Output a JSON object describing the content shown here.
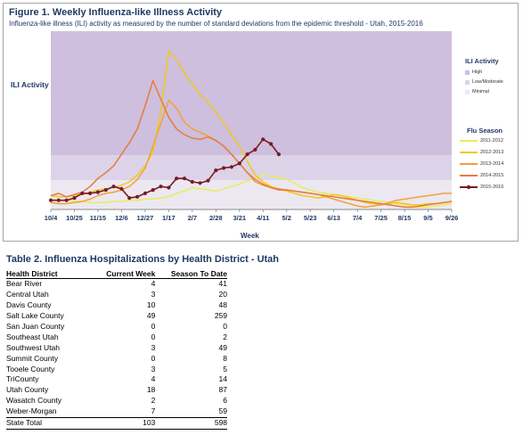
{
  "figure": {
    "title": "Figure 1. Weekly Influenza-like Illness Activity",
    "subtitle": "Influenza-like illness (ILI) activity  as measured by the number of standard deviations from the epidemic threshold - Utah, 2015-2016",
    "ylabel": "ILI Activity",
    "xlabel": "Week"
  },
  "activity_legend": {
    "title": "ILI Activity",
    "items": [
      {
        "label": "High",
        "color": "#cdbfdd"
      },
      {
        "label": "Low/Moderate",
        "color": "#dcd3e8"
      },
      {
        "label": "Minimal",
        "color": "#ece8f1"
      }
    ]
  },
  "season_legend": {
    "title": "Flu Season"
  },
  "chart_data": {
    "type": "line",
    "title": "Figure 1. Weekly Influenza-like Illness Activity",
    "xlabel": "Week",
    "ylabel": "ILI Activity",
    "x_tick_labels": [
      "10/4",
      "10/25",
      "11/15",
      "12/6",
      "12/27",
      "1/17",
      "2/7",
      "2/28",
      "3/21",
      "4/11",
      "5/2",
      "5/23",
      "6/13",
      "7/4",
      "7/25",
      "8/15",
      "9/5",
      "9/26"
    ],
    "background_bands": [
      {
        "label": "High",
        "color": "#cdbfdd"
      },
      {
        "label": "Low/Moderate",
        "color": "#dcd3e8"
      },
      {
        "label": "Minimal",
        "color": "#ece8f1"
      }
    ],
    "series": [
      {
        "name": "2011-2012",
        "color": "#e9ec5b",
        "values": [
          9,
          8,
          8,
          7,
          7,
          6,
          6,
          6,
          7,
          7,
          8,
          8,
          9,
          9,
          10,
          11,
          14,
          16,
          19,
          18,
          17,
          16,
          18,
          20,
          22,
          25,
          27,
          30,
          29,
          28,
          26,
          23,
          19,
          17,
          15,
          14,
          13,
          12,
          11,
          10,
          9,
          8,
          7,
          6,
          5,
          4,
          3,
          2,
          2,
          3,
          4,
          5
        ]
      },
      {
        "name": "2012-2013",
        "color": "#f2c81b",
        "values": [
          12,
          11,
          11,
          12,
          13,
          15,
          17,
          18,
          19,
          21,
          24,
          30,
          38,
          50,
          85,
          138,
          130,
          118,
          110,
          100,
          93,
          85,
          75,
          65,
          55,
          42,
          30,
          24,
          20,
          18,
          16,
          14,
          12,
          11,
          10,
          11,
          13,
          12,
          10,
          8,
          6,
          5,
          4,
          5,
          6,
          5,
          4,
          4,
          5,
          5,
          6,
          7
        ]
      },
      {
        "name": "2013-2014",
        "color": "#f2a238",
        "values": [
          6,
          5,
          5,
          6,
          7,
          9,
          12,
          14,
          15,
          17,
          20,
          26,
          36,
          55,
          75,
          95,
          88,
          76,
          70,
          67,
          64,
          60,
          55,
          48,
          40,
          32,
          24,
          21,
          19,
          18,
          17,
          16,
          15,
          14,
          13,
          11,
          9,
          7,
          5,
          3,
          2,
          3,
          4,
          6,
          8,
          9,
          10,
          11,
          12,
          13,
          14,
          14
        ]
      },
      {
        "name": "2014-2015",
        "color": "#e87a3d",
        "values": [
          12,
          14,
          11,
          13,
          15,
          20,
          27,
          32,
          38,
          48,
          58,
          70,
          90,
          112,
          96,
          80,
          70,
          65,
          62,
          61,
          63,
          60,
          55,
          48,
          40,
          32,
          26,
          22,
          19,
          17,
          17,
          16,
          15,
          14,
          13,
          12,
          11,
          10,
          9,
          8,
          7,
          6,
          5,
          4,
          3,
          2,
          2,
          3,
          4,
          5,
          6,
          7
        ]
      },
      {
        "name": "2015-2016",
        "color": "#7a1a2a",
        "values": [
          8,
          8,
          8,
          10,
          14,
          14,
          15,
          17,
          20,
          18,
          10,
          11,
          14,
          17,
          20,
          19,
          27,
          27,
          24,
          23,
          25,
          34,
          36,
          37,
          40,
          48,
          52,
          61,
          57,
          48
        ]
      }
    ]
  },
  "hosp_table": {
    "title": "Table 2. Influenza Hospitalizations by Health District - Utah",
    "headers": [
      "Health District",
      "Current Week",
      "Season To Date"
    ],
    "rows": [
      {
        "district": "Bear River",
        "current": "4",
        "season": "41"
      },
      {
        "district": "Central Utah",
        "current": "3",
        "season": "20"
      },
      {
        "district": "Davis County",
        "current": "10",
        "season": "48"
      },
      {
        "district": "Salt Lake County",
        "current": "49",
        "season": "259"
      },
      {
        "district": "San Juan County",
        "current": "0",
        "season": "0"
      },
      {
        "district": "Southeast Utah",
        "current": "0",
        "season": "2"
      },
      {
        "district": "Southwest Utah",
        "current": "3",
        "season": "49"
      },
      {
        "district": "Summit County",
        "current": "0",
        "season": "8"
      },
      {
        "district": "Tooele County",
        "current": "3",
        "season": "5"
      },
      {
        "district": "TriCounty",
        "current": "4",
        "season": "14"
      },
      {
        "district": "Utah County",
        "current": "18",
        "season": "87"
      },
      {
        "district": "Wasatch County",
        "current": "2",
        "season": "6"
      },
      {
        "district": "Weber-Morgan",
        "current": "7",
        "season": "59"
      }
    ],
    "total": {
      "district": "State Total",
      "current": "103",
      "season": "598"
    }
  }
}
